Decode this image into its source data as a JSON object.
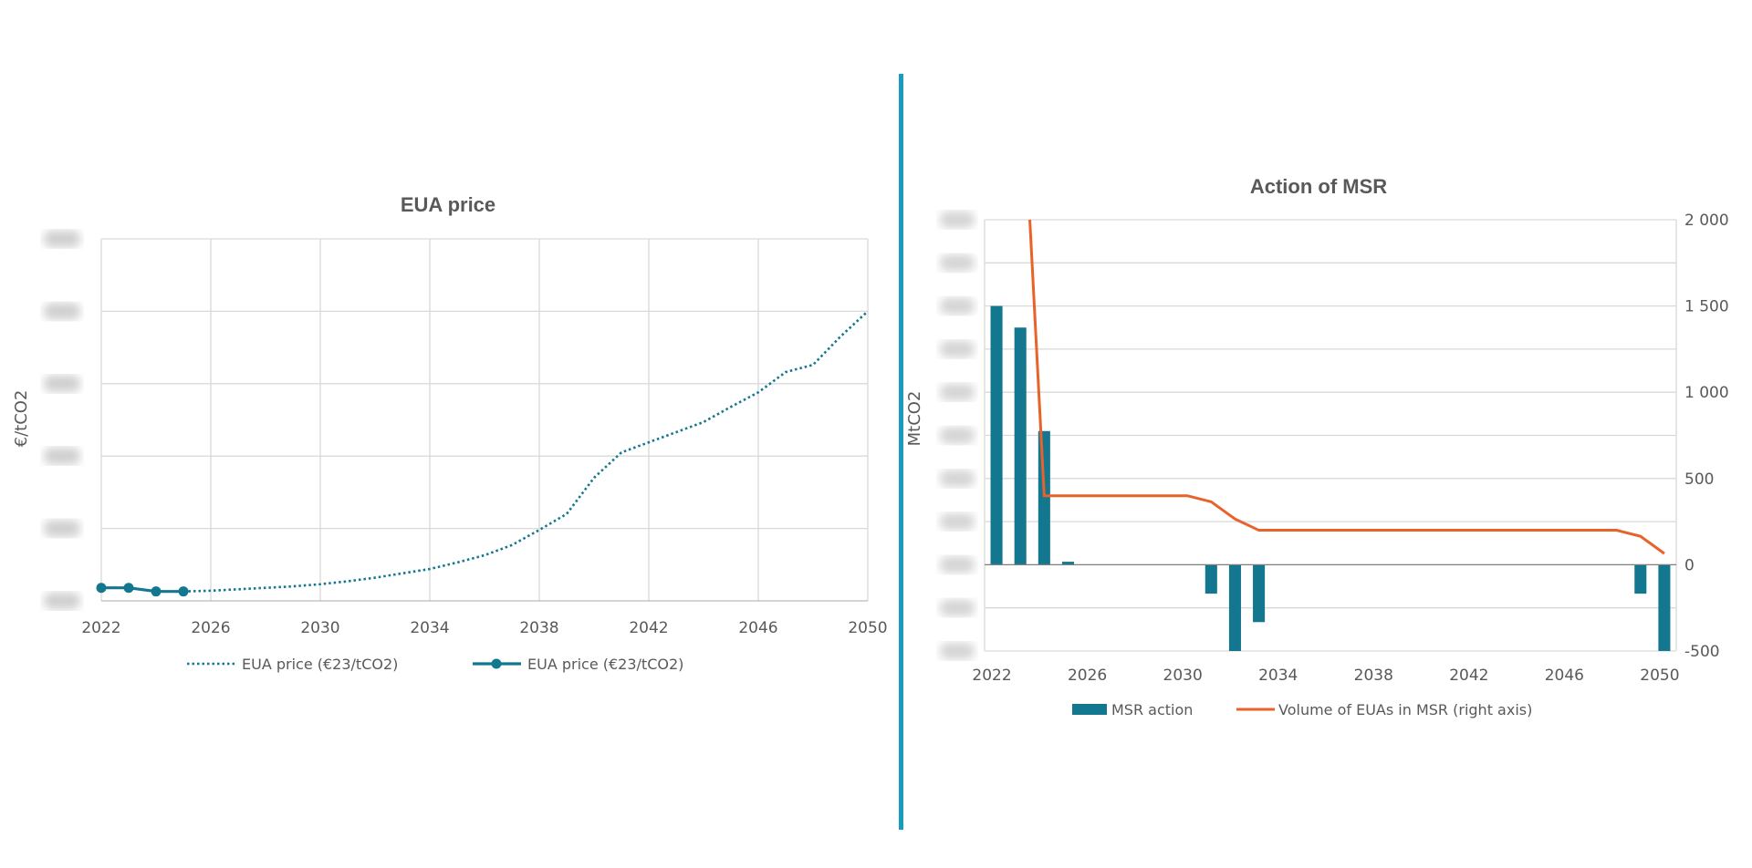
{
  "divider_color": "#1a9bc0",
  "chart_data": [
    {
      "type": "line",
      "title": "EUA price",
      "ylabel": "€/tCO2",
      "xlabel": "",
      "x_ticks": [
        "2022",
        "2026",
        "2030",
        "2034",
        "2038",
        "2042",
        "2046",
        "2050"
      ],
      "xlim": [
        2022,
        2050
      ],
      "ylim": [
        0,
        5
      ],
      "y_tick_labels_blurred": true,
      "grid": true,
      "legend": "bottom",
      "color": "#13778f",
      "series": [
        {
          "name": "EUA price (€23/tCO2)",
          "style": "dotted",
          "x": [
            2025,
            2026,
            2027,
            2028,
            2029,
            2030,
            2031,
            2032,
            2033,
            2034,
            2035,
            2036,
            2037,
            2038,
            2039,
            2040,
            2041,
            2042,
            2043,
            2044,
            2045,
            2046,
            2047,
            2048,
            2049,
            2050
          ],
          "y": [
            0.13,
            0.14,
            0.16,
            0.18,
            0.2,
            0.23,
            0.27,
            0.32,
            0.38,
            0.44,
            0.53,
            0.63,
            0.77,
            0.98,
            1.2,
            1.7,
            2.05,
            2.19,
            2.33,
            2.47,
            2.68,
            2.88,
            3.16,
            3.26,
            3.65,
            4.0
          ]
        },
        {
          "name": "EUA price (€23/tCO2)",
          "style": "solid-markers",
          "x": [
            2022,
            2023,
            2024,
            2025
          ],
          "y": [
            0.18,
            0.18,
            0.13,
            0.13
          ]
        }
      ]
    },
    {
      "type": "bar+line",
      "title": "Action of MSR",
      "ylabel": "MtCO2",
      "left_ylim": [
        -2,
        8
      ],
      "left_tick_labels_blurred": true,
      "right_ylim": [
        -500,
        2000
      ],
      "right_ticks": [
        "-500",
        "0",
        "500",
        "1 000",
        "1 500",
        "2 000"
      ],
      "right_tick_values": [
        -500,
        0,
        500,
        1000,
        1500,
        2000
      ],
      "categories": [
        2022,
        2023,
        2024,
        2025,
        2026,
        2027,
        2028,
        2029,
        2030,
        2031,
        2032,
        2033,
        2034,
        2035,
        2036,
        2037,
        2038,
        2039,
        2040,
        2041,
        2042,
        2043,
        2044,
        2045,
        2046,
        2047,
        2048,
        2049,
        2050
      ],
      "x_ticks": [
        "2022",
        "2026",
        "2030",
        "2034",
        "2038",
        "2042",
        "2046",
        "2050"
      ],
      "grid": true,
      "legend": "bottom",
      "series": [
        {
          "name": "MSR action",
          "type": "bar",
          "axis": "left",
          "color": "#13778f",
          "values": [
            6.0,
            5.5,
            3.1,
            0.07,
            0,
            0,
            0,
            0,
            0,
            -0.67,
            -2.0,
            -1.33,
            0,
            0,
            0,
            0,
            0,
            0,
            0,
            0,
            0,
            0,
            0,
            0,
            0,
            0,
            0,
            -0.67,
            -2.0
          ]
        },
        {
          "name": "Volume of EUAs in MSR (right axis)",
          "type": "line",
          "axis": "right",
          "color": "#e8622a",
          "values": [
            null,
            3050,
            400,
            400,
            400,
            400,
            400,
            400,
            400,
            365,
            265,
            200,
            200,
            200,
            200,
            200,
            200,
            200,
            200,
            200,
            200,
            200,
            200,
            200,
            200,
            200,
            200,
            165,
            65
          ]
        }
      ]
    }
  ]
}
